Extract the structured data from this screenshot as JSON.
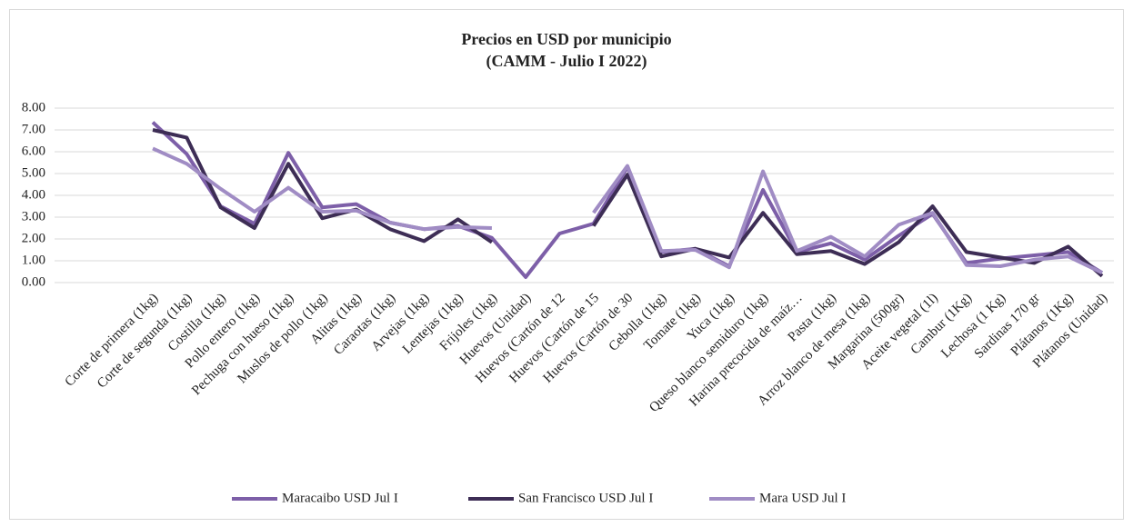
{
  "chart_data": {
    "type": "line",
    "title": [
      "Precios en USD por municipio",
      "(CAMM - Julio I 2022)"
    ],
    "categories": [
      "Corte de primera (1kg)",
      "Corte de segunda (1kg)",
      "Costilla (1kg)",
      "Pollo entero (1kg)",
      "Pechuga con hueso (1kg)",
      "Muslos de pollo (1kg)",
      "Alitas (1kg)",
      "Caraotas (1kg)",
      "Arvejas (1kg)",
      "Lentejas (1kg)",
      "Frijoles (1kg)",
      "Huevos (Unidad)",
      "Huevos (Cartón de 12",
      "Huevos (Cartón de 15",
      "Huevos (Cartón de 30",
      "Cebolla (1kg)",
      "Tomate (1kg)",
      "Yuca (1kg)",
      "Queso blanco semiduro (1kg)",
      "Harina precocida de maíz…",
      "Pasta (1kg)",
      "Arroz blanco de mesa (1kg)",
      "Margarina (500gr)",
      "Aceite vegetal (1l)",
      "Cambur (1Kg)",
      "Lechosa (1 Kg)",
      "Sardinas 170 gr",
      "Plátanos (1Kg)",
      "Plátanos (Unidad)"
    ],
    "series": [
      {
        "name": "Maracaibo USD Jul I",
        "color": "#7d5fa8",
        "values": [
          7.35,
          5.9,
          3.5,
          2.7,
          5.95,
          3.45,
          3.6,
          2.75,
          2.45,
          2.6,
          2.05,
          0.25,
          2.25,
          2.7,
          5.3,
          1.4,
          1.55,
          0.75,
          4.25,
          1.4,
          1.8,
          1.05,
          2.15,
          3.15,
          0.9,
          1.1,
          1.25,
          1.4,
          0.45
        ]
      },
      {
        "name": "San Francisco USD Jul I",
        "color": "#3d2d55",
        "values": [
          7.0,
          6.65,
          3.45,
          2.5,
          5.45,
          2.95,
          3.35,
          2.45,
          1.9,
          2.9,
          1.85,
          null,
          null,
          2.6,
          4.95,
          1.2,
          1.55,
          1.15,
          3.2,
          1.3,
          1.45,
          0.85,
          1.85,
          3.5,
          1.4,
          1.15,
          0.9,
          1.65,
          0.3
        ]
      },
      {
        "name": "Mara USD Jul I",
        "color": "#a08cc4",
        "values": [
          6.15,
          5.45,
          4.3,
          3.25,
          4.35,
          3.25,
          3.3,
          2.75,
          2.45,
          2.55,
          2.5,
          null,
          null,
          3.2,
          5.35,
          1.45,
          1.5,
          0.7,
          5.1,
          1.45,
          2.1,
          1.2,
          2.65,
          3.2,
          0.8,
          0.75,
          1.05,
          1.2,
          0.45
        ]
      }
    ],
    "ylim": [
      0,
      8
    ],
    "yticks": [
      {
        "value": 0,
        "label": "0.00"
      },
      {
        "value": 1,
        "label": "1.00"
      },
      {
        "value": 2,
        "label": "2.00"
      },
      {
        "value": 3,
        "label": "3.00"
      },
      {
        "value": 4,
        "label": "4.00"
      },
      {
        "value": 5,
        "label": "5.00"
      },
      {
        "value": 6,
        "label": "6.00"
      },
      {
        "value": 7,
        "label": "7.00"
      },
      {
        "value": 8,
        "label": "8.00"
      }
    ],
    "grid": true,
    "legend": "bottom"
  }
}
